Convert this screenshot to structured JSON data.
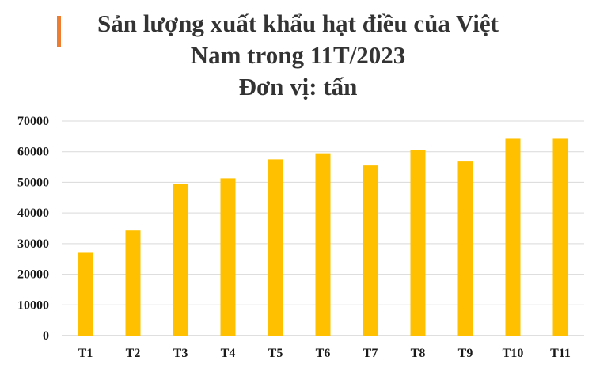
{
  "title": {
    "line1": "Sản lượng xuất khẩu hạt điều của Việt",
    "line2": "Nam trong 11T/2023",
    "line3": "Đơn vị: tấn"
  },
  "colors": {
    "bar": "#FFC000",
    "accent": "#ED7D31",
    "grid": "#D9D9D9"
  },
  "chart_data": {
    "type": "bar",
    "title": "Sản lượng xuất khẩu hạt điều của Việt Nam trong 11T/2023 Đơn vị: tấn",
    "categories": [
      "T1",
      "T2",
      "T3",
      "T4",
      "T5",
      "T6",
      "T7",
      "T8",
      "T9",
      "T10",
      "T11"
    ],
    "values": [
      27000,
      34300,
      49500,
      51300,
      57500,
      59500,
      55500,
      60500,
      56800,
      64200,
      64200
    ],
    "ylim": [
      0,
      70000
    ],
    "yticks": [
      "0",
      "10000",
      "20000",
      "30000",
      "40000",
      "50000",
      "60000",
      "70000"
    ],
    "grid": true,
    "legend": "none",
    "xlabel": "",
    "ylabel": ""
  }
}
